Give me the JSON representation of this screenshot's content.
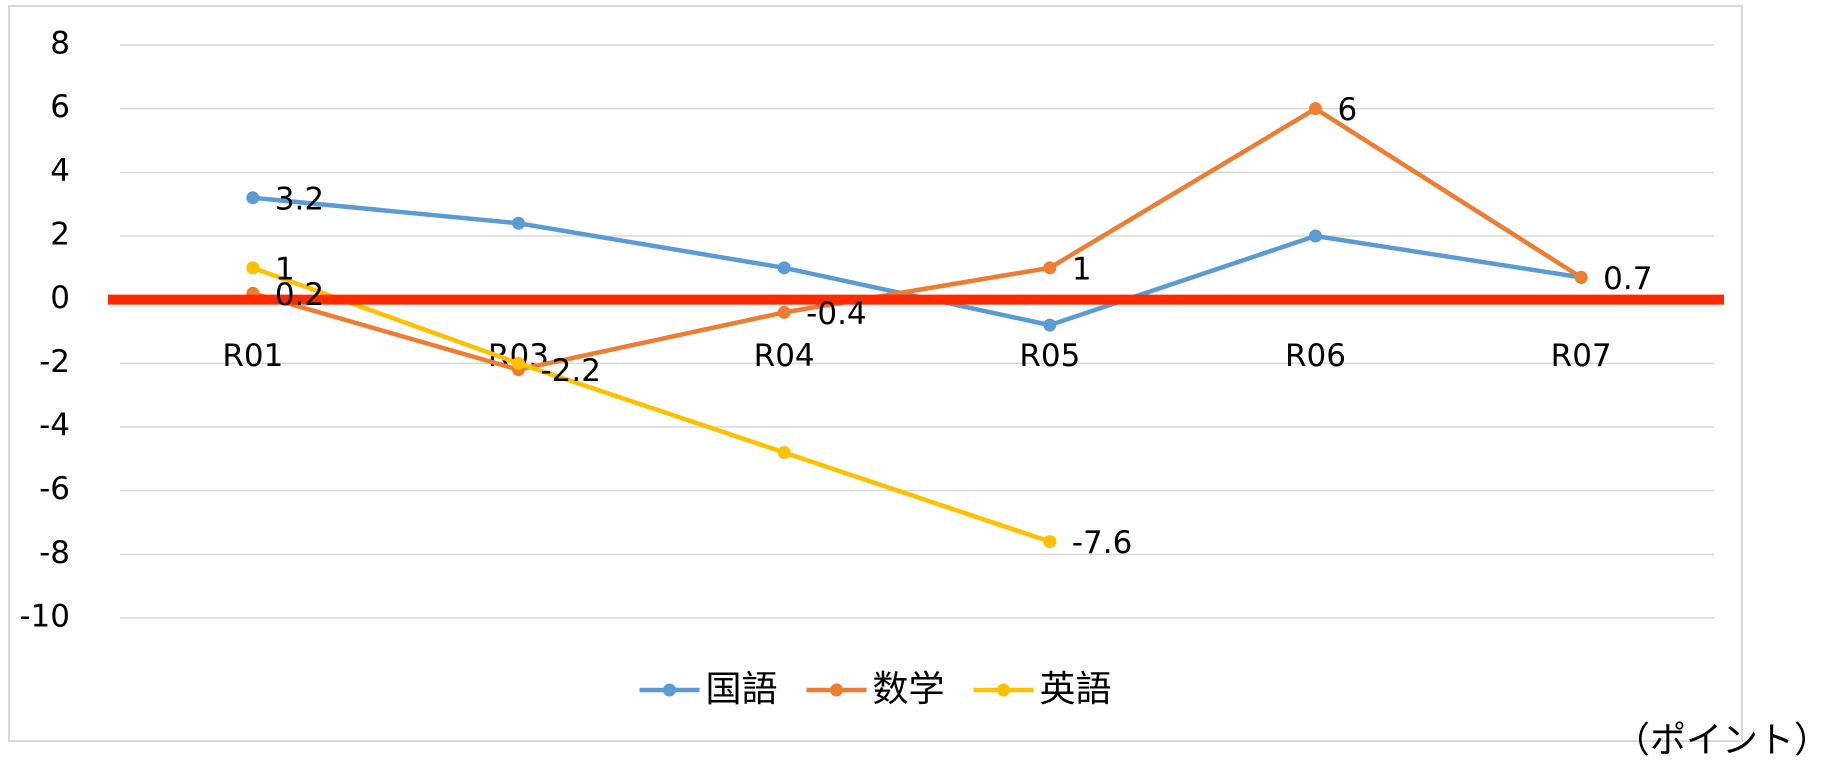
{
  "chart_data": {
    "type": "line",
    "categories": [
      "R01",
      "R03",
      "R04",
      "R05",
      "R06",
      "R07"
    ],
    "series": [
      {
        "name": "国語",
        "color": "#5b9bd5",
        "values": [
          3.2,
          2.4,
          1.0,
          -0.8,
          2.0,
          0.7
        ],
        "value_labels": [
          "3.2",
          null,
          null,
          null,
          null,
          null
        ]
      },
      {
        "name": "数学",
        "color": "#ed7d31",
        "values": [
          0.2,
          -2.2,
          -0.4,
          1,
          6,
          0.7
        ],
        "value_labels": [
          "0.2",
          "-2.2",
          "-0.4",
          "1",
          "6",
          "0.7"
        ]
      },
      {
        "name": "英語",
        "color": "#ffc000",
        "values": [
          1,
          -2.0,
          -4.8,
          -7.6,
          null,
          null
        ],
        "value_labels": [
          "1",
          null,
          null,
          "-7.6",
          null,
          null
        ]
      }
    ],
    "ylim": [
      -10,
      8
    ],
    "yticks": [
      -10,
      -8,
      -6,
      -4,
      -2,
      0,
      2,
      4,
      6,
      8
    ],
    "grid": true,
    "reference_line": {
      "value": 0,
      "color": "#ff2a00"
    },
    "legend": "bottom",
    "unit_note": "（ポイント）"
  }
}
